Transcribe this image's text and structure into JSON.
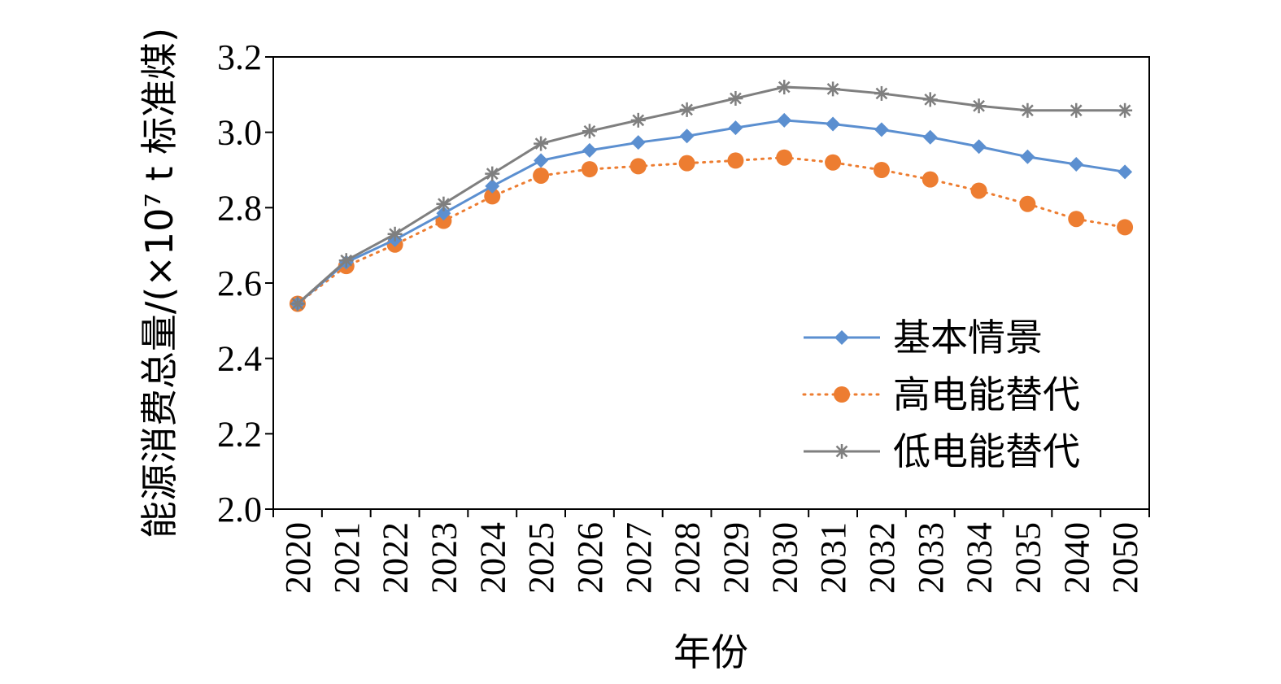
{
  "chart_data": {
    "type": "line",
    "xlabel": "年份",
    "ylabel": "能源消费总量/(×10⁷ t 标准煤)",
    "ylim": [
      2.0,
      3.2
    ],
    "yticks": [
      "2.0",
      "2.2",
      "2.4",
      "2.6",
      "2.8",
      "3.0",
      "3.2"
    ],
    "categories": [
      "2020",
      "2021",
      "2022",
      "2023",
      "2024",
      "2025",
      "2026",
      "2027",
      "2028",
      "2029",
      "2030",
      "2031",
      "2032",
      "2033",
      "2034",
      "2035",
      "2040",
      "2050"
    ],
    "grid": false,
    "legend_position": "bottom-right",
    "series": [
      {
        "name": "基本情景",
        "color": "#5B8FD0",
        "marker": "diamond",
        "line": "solid",
        "values": [
          2.545,
          2.655,
          2.715,
          2.785,
          2.857,
          2.925,
          2.952,
          2.973,
          2.99,
          3.012,
          3.032,
          3.022,
          3.007,
          2.987,
          2.962,
          2.935,
          2.915,
          2.895
        ]
      },
      {
        "name": "高电能替代",
        "color": "#ED7D31",
        "marker": "circle",
        "line": "dotted",
        "values": [
          2.545,
          2.645,
          2.702,
          2.765,
          2.83,
          2.885,
          2.902,
          2.91,
          2.918,
          2.925,
          2.933,
          2.92,
          2.9,
          2.875,
          2.845,
          2.81,
          2.77,
          2.748
        ]
      },
      {
        "name": "低电能替代",
        "color": "#7F7F7F",
        "marker": "star",
        "line": "solid",
        "values": [
          2.545,
          2.66,
          2.73,
          2.81,
          2.89,
          2.97,
          3.003,
          3.032,
          3.06,
          3.09,
          3.12,
          3.115,
          3.103,
          3.087,
          3.07,
          3.058,
          3.058,
          3.058
        ]
      }
    ]
  }
}
